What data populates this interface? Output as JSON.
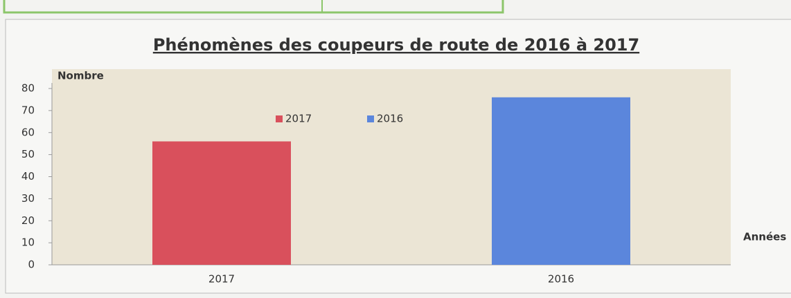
{
  "chart_data": {
    "type": "bar",
    "title": "Phénomènes des coupeurs de route de 2016 à 2017",
    "y_label": "Nombre",
    "x_label": "Années",
    "categories": [
      "2017",
      "2016"
    ],
    "series": [
      {
        "name": "2017",
        "color": "#d9505c",
        "values": [
          56,
          null
        ]
      },
      {
        "name": "2016",
        "color": "#5b86dc",
        "values": [
          null,
          76
        ]
      }
    ],
    "ylim": [
      0,
      80
    ],
    "yticks": [
      0,
      10,
      20,
      30,
      40,
      50,
      60,
      70,
      80
    ]
  }
}
